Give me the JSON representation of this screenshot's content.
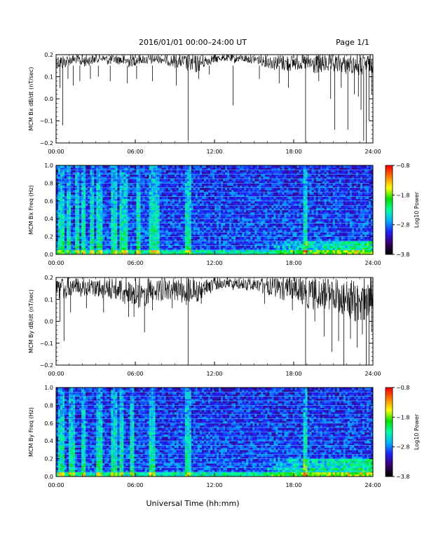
{
  "header": {
    "title": "2016/01/01   00:00–24:00 UT",
    "page": "Page 1/1"
  },
  "xlabel": "Universal Time (hh:mm)",
  "colors": {
    "trace": "#000000",
    "colormap": [
      "#000000",
      "#3a0070",
      "#2020ff",
      "#00b0ff",
      "#00ffa0",
      "#00e000",
      "#ffff00",
      "#ff8000",
      "#ff0000"
    ]
  },
  "chart_data": [
    {
      "type": "line",
      "id": "bx-dbdt",
      "ylabel": "MCM Bx dB/dt (nT/sec)",
      "xlim": [
        0,
        24
      ],
      "ylim": [
        -0.2,
        0.2
      ],
      "yticks": [
        "0.2",
        "0.1",
        "0.0",
        "−0.1",
        "−0.2"
      ],
      "xticks": [
        "00:00",
        "06:00",
        "12:00",
        "18:00",
        "24:00"
      ],
      "series": [
        {
          "x": [
            0,
            0.5,
            1,
            1.5,
            2,
            2.5,
            3,
            3.5,
            4,
            4.5,
            5,
            5.5,
            6,
            6.5,
            7,
            7.5,
            8,
            8.5,
            9,
            9.5,
            10,
            10.5,
            11,
            11.5,
            12,
            12.5,
            13,
            13.5,
            14,
            14.5,
            15,
            15.5,
            16,
            16.5,
            17,
            17.5,
            18,
            18.5,
            19,
            19.5,
            20,
            20.5,
            21,
            21.5,
            22,
            22.5,
            23,
            23.5,
            24
          ],
          "upper": [
            0.2,
            0.2,
            0.2,
            0.2,
            0.2,
            0.2,
            0.2,
            0.2,
            0.2,
            0.2,
            0.2,
            0.2,
            0.2,
            0.2,
            0.2,
            0.2,
            0.2,
            0.2,
            0.2,
            0.2,
            0.2,
            0.2,
            0.2,
            0.2,
            0.2,
            0.2,
            0.2,
            0.2,
            0.2,
            0.2,
            0.2,
            0.2,
            0.2,
            0.2,
            0.2,
            0.2,
            0.2,
            0.2,
            0.2,
            0.2,
            0.2,
            0.2,
            0.2,
            0.2,
            0.2,
            0.2,
            0.2,
            0.2,
            0.2
          ],
          "lower": [
            0.14,
            0.13,
            0.15,
            0.16,
            0.14,
            0.15,
            0.16,
            0.17,
            0.15,
            0.16,
            0.15,
            0.14,
            0.15,
            0.16,
            0.15,
            0.16,
            0.16,
            0.15,
            0.14,
            0.14,
            0.12,
            0.11,
            0.13,
            0.15,
            0.16,
            0.17,
            0.17,
            0.16,
            0.17,
            0.16,
            0.16,
            0.15,
            0.14,
            0.13,
            0.13,
            0.12,
            0.13,
            0.13,
            0.12,
            0.11,
            0.11,
            0.12,
            0.11,
            0.12,
            0.11,
            0.11,
            0.1,
            0.11,
            0.12
          ],
          "spikes": [
            [
              0.3,
              0.05
            ],
            [
              0.5,
              -0.12
            ],
            [
              0.9,
              0.09
            ],
            [
              1.3,
              0.06
            ],
            [
              1.8,
              0.08
            ],
            [
              2.6,
              0.09
            ],
            [
              3.2,
              0.1
            ],
            [
              4.1,
              0.08
            ],
            [
              5.4,
              0.07
            ],
            [
              6.1,
              0.09
            ],
            [
              7.3,
              0.08
            ],
            [
              9.1,
              0.06
            ],
            [
              10.0,
              -0.19
            ],
            [
              10.8,
              0.09
            ],
            [
              11.6,
              0.11
            ],
            [
              13.4,
              -0.03
            ],
            [
              15.4,
              0.09
            ],
            [
              16.9,
              0.07
            ],
            [
              17.6,
              0.05
            ],
            [
              18.9,
              -0.2
            ],
            [
              19.9,
              0.08
            ],
            [
              20.8,
              0.0
            ],
            [
              21.1,
              -0.14
            ],
            [
              21.6,
              0.05
            ],
            [
              22.1,
              -0.14
            ],
            [
              22.6,
              0.02
            ],
            [
              22.9,
              0.01
            ],
            [
              23.1,
              -0.05
            ],
            [
              23.3,
              -0.19
            ],
            [
              23.5,
              -0.2
            ],
            [
              23.7,
              -0.1
            ],
            [
              23.9,
              0.02
            ]
          ]
        }
      ]
    },
    {
      "type": "heatmap",
      "id": "bx-spectrogram",
      "ylabel": "MCM Bx Freq (Hz)",
      "xlim": [
        0,
        24
      ],
      "ylim": [
        0,
        1.0
      ],
      "yticks": [
        "1.0",
        "0.8",
        "0.6",
        "0.4",
        "0.2",
        "0.0"
      ],
      "xticks": [
        "00:00",
        "06:00",
        "12:00",
        "18:00",
        "24:00"
      ],
      "colorbar": {
        "label": "Log10 Power",
        "ticks": [
          "−0.8",
          "−1.8",
          "−2.8",
          "−3.8"
        ],
        "range": [
          -3.8,
          -0.8
        ]
      },
      "harmonic_lines_hz": [
        0.05,
        0.1,
        0.15,
        0.2,
        0.25,
        0.3,
        0.35,
        0.4,
        0.45,
        0.5,
        0.55,
        0.6,
        0.65,
        0.7,
        0.75,
        0.8,
        0.85,
        0.9,
        0.95,
        1.0
      ],
      "bright_columns_ut": [
        0.4,
        1.0,
        1.6,
        2.1,
        2.7,
        3.3,
        4.4,
        4.9,
        5.3,
        6.3,
        7.3,
        7.6,
        10.0,
        18.9
      ],
      "low_freq_enhancement": {
        "start_ut": 16.5,
        "end_ut": 24,
        "max_freq_hz": 0.15
      }
    },
    {
      "type": "line",
      "id": "by-dbdt",
      "ylabel": "MCM By dB/dt (nT/sec)",
      "xlim": [
        0,
        24
      ],
      "ylim": [
        -0.2,
        0.2
      ],
      "yticks": [
        "0.2",
        "0.1",
        "0.0",
        "−0.1",
        "−0.2"
      ],
      "xticks": [
        "00:00",
        "06:00",
        "12:00",
        "18:00",
        "24:00"
      ],
      "series": [
        {
          "x": [
            0,
            0.5,
            1,
            1.5,
            2,
            2.5,
            3,
            3.5,
            4,
            4.5,
            5,
            5.5,
            6,
            6.5,
            7,
            7.5,
            8,
            8.5,
            9,
            9.5,
            10,
            10.5,
            11,
            11.5,
            12,
            12.5,
            13,
            13.5,
            14,
            14.5,
            15,
            15.5,
            16,
            16.5,
            17,
            17.5,
            18,
            18.5,
            19,
            19.5,
            20,
            20.5,
            21,
            21.5,
            22,
            22.5,
            23,
            23.5,
            24
          ],
          "upper": [
            0.2,
            0.2,
            0.2,
            0.2,
            0.2,
            0.2,
            0.2,
            0.2,
            0.2,
            0.2,
            0.2,
            0.2,
            0.2,
            0.2,
            0.2,
            0.2,
            0.2,
            0.2,
            0.2,
            0.2,
            0.2,
            0.2,
            0.2,
            0.2,
            0.2,
            0.2,
            0.2,
            0.2,
            0.2,
            0.2,
            0.2,
            0.2,
            0.2,
            0.2,
            0.2,
            0.2,
            0.2,
            0.2,
            0.2,
            0.2,
            0.2,
            0.2,
            0.2,
            0.2,
            0.2,
            0.2,
            0.2,
            0.2,
            0.2
          ],
          "lower": [
            0.1,
            0.09,
            0.11,
            0.12,
            0.11,
            0.12,
            0.11,
            0.1,
            0.09,
            0.1,
            0.08,
            0.06,
            0.05,
            0.06,
            0.08,
            0.1,
            0.09,
            0.1,
            0.09,
            0.08,
            0.07,
            0.08,
            0.1,
            0.12,
            0.14,
            0.15,
            0.15,
            0.14,
            0.15,
            0.14,
            0.14,
            0.13,
            0.12,
            0.11,
            0.1,
            0.09,
            0.1,
            0.08,
            0.06,
            0.05,
            0.05,
            0.06,
            0.04,
            0.03,
            0.02,
            0.0,
            -0.01,
            0.01,
            0.03
          ],
          "spikes": [
            [
              0.3,
              0.0
            ],
            [
              0.6,
              -0.09
            ],
            [
              1.1,
              0.04
            ],
            [
              2.3,
              0.06
            ],
            [
              3.6,
              0.04
            ],
            [
              5.5,
              0.02
            ],
            [
              5.9,
              0.02
            ],
            [
              6.7,
              -0.05
            ],
            [
              7.3,
              0.05
            ],
            [
              8.8,
              0.06
            ],
            [
              10.0,
              -0.2
            ],
            [
              11.0,
              0.08
            ],
            [
              15.8,
              0.08
            ],
            [
              17.9,
              0.05
            ],
            [
              18.9,
              -0.2
            ],
            [
              19.6,
              0.0
            ],
            [
              20.3,
              -0.07
            ],
            [
              20.9,
              -0.14
            ],
            [
              21.4,
              -0.09
            ],
            [
              21.8,
              -0.2
            ],
            [
              22.3,
              -0.08
            ],
            [
              22.8,
              -0.12
            ],
            [
              23.2,
              -0.06
            ],
            [
              23.5,
              -0.2
            ],
            [
              23.7,
              -0.2
            ],
            [
              23.9,
              -0.05
            ]
          ]
        }
      ]
    },
    {
      "type": "heatmap",
      "id": "by-spectrogram",
      "ylabel": "MCM By Freq (Hz)",
      "xlim": [
        0,
        24
      ],
      "ylim": [
        0,
        1.0
      ],
      "yticks": [
        "1.0",
        "0.8",
        "0.6",
        "0.4",
        "0.2",
        "0.0"
      ],
      "xticks": [
        "00:00",
        "06:00",
        "12:00",
        "18:00",
        "24:00"
      ],
      "colorbar": {
        "label": "Log10 Power",
        "ticks": [
          "−0.8",
          "−1.8",
          "−2.8",
          "−3.8"
        ],
        "range": [
          -3.8,
          -0.8
        ]
      },
      "harmonic_lines_hz": [
        0.05,
        0.1,
        0.15,
        0.2,
        0.25,
        0.3,
        0.35,
        0.4,
        0.45,
        0.5,
        0.55,
        0.6,
        0.65,
        0.7,
        0.75,
        0.8,
        0.85,
        0.9,
        0.95,
        1.0
      ],
      "bright_columns_ut": [
        0.4,
        1.2,
        2.1,
        3.3,
        4.4,
        4.9,
        5.8,
        7.3,
        10.0,
        18.9
      ],
      "low_freq_enhancement": {
        "start_ut": 16.0,
        "end_ut": 24,
        "max_freq_hz": 0.2
      }
    }
  ]
}
